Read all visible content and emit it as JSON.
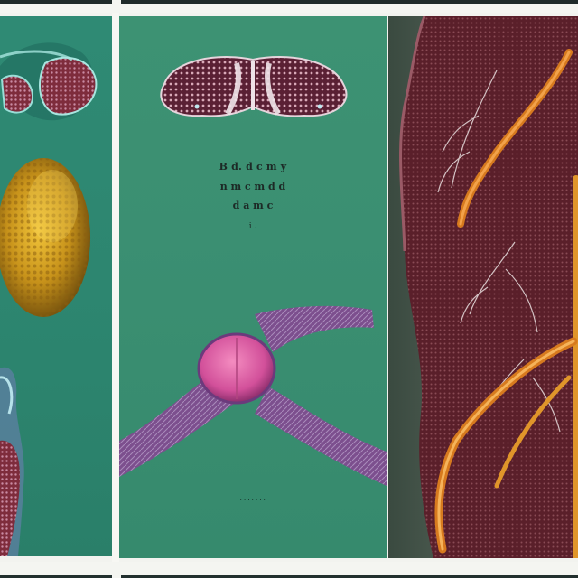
{
  "panels": {
    "middle": {
      "text_lines": [
        "B d. d  c   m y",
        "n  m  c  m    d  d",
        "d  a  m  c",
        "i    ."
      ],
      "caption": ". . . . . . ."
    }
  },
  "colors": {
    "teal_background": "#3b8f72",
    "tissue_red": "#6e2a30",
    "nerve_orange": "#e08a2a",
    "cell_yellow": "#c99a1e",
    "node_pink": "#e068a0",
    "fibre_purple": "#7a4e8c"
  }
}
